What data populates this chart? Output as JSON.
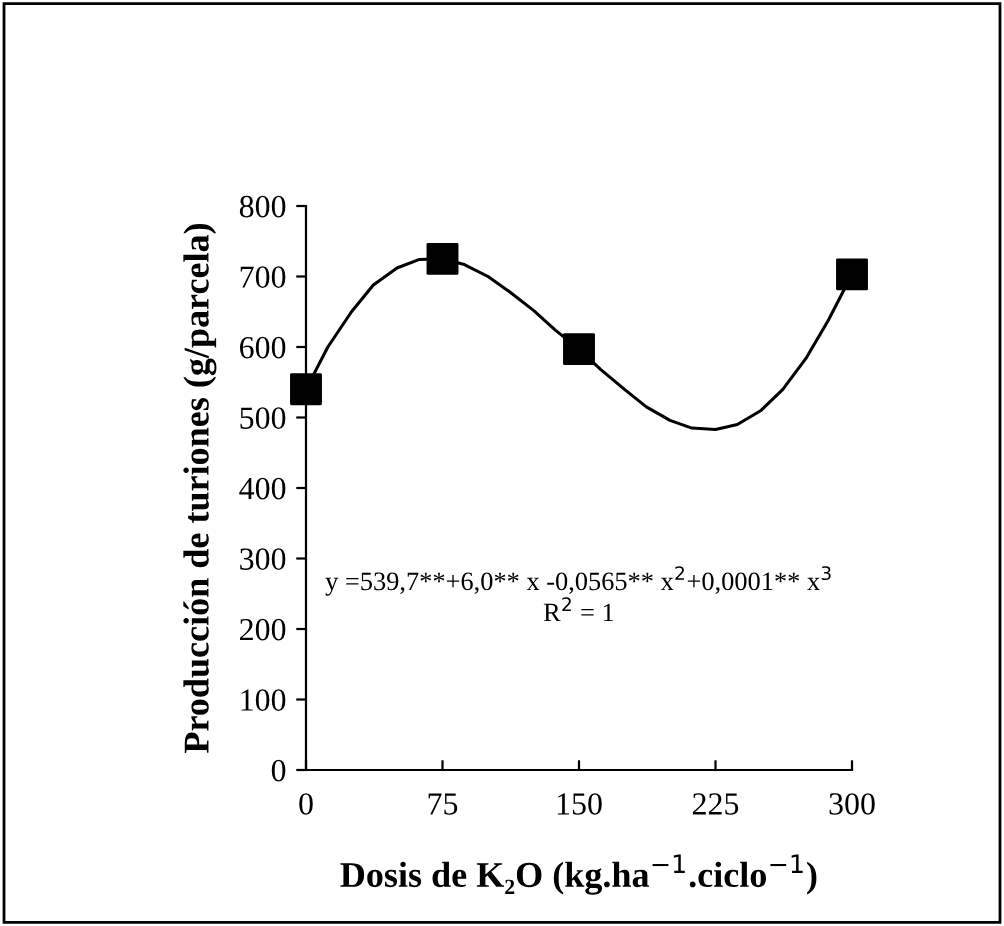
{
  "chart_data": {
    "type": "scatter",
    "xlabel": "Dosis de K₂O (kg.ha$^{−1}$.ciclo$^{−1}$)",
    "ylabel": "Producción de turiones (g/parcela)",
    "series": [
      {
        "color": "#000000",
        "marker": "square",
        "x": [
          0,
          75,
          150,
          300
        ],
        "values": [
          540,
          725,
          597,
          703
        ]
      },
      {
        "type": "line",
        "color": "#000000",
        "marker": "none",
        "line_style": "solid",
        "x": [
          0,
          12,
          25,
          37,
          50,
          62,
          75,
          87,
          100,
          112,
          125,
          137,
          150,
          162,
          175,
          187,
          200,
          212,
          225,
          237,
          250,
          262,
          275,
          287,
          300
        ],
        "values": [
          540,
          600,
          650,
          688,
          712,
          724,
          725,
          717,
          700,
          678,
          652,
          624,
          597,
          568,
          540,
          515,
          496,
          485,
          483,
          490,
          510,
          540,
          585,
          638,
          703
        ]
      }
    ],
    "annotations": [
      "y =539,7**+6,0** x -0,0565** x$^{2}$+0,0001** x$^{3}$",
      "R$^{2}$ = 1"
    ],
    "xlim": [
      0,
      300
    ],
    "xticks": [
      0,
      75,
      150,
      225,
      300
    ],
    "ylim": [
      0,
      800
    ],
    "yticks": [
      0,
      100,
      200,
      300,
      400,
      500,
      600,
      700,
      800
    ],
    "grid": false,
    "legend": false
  }
}
